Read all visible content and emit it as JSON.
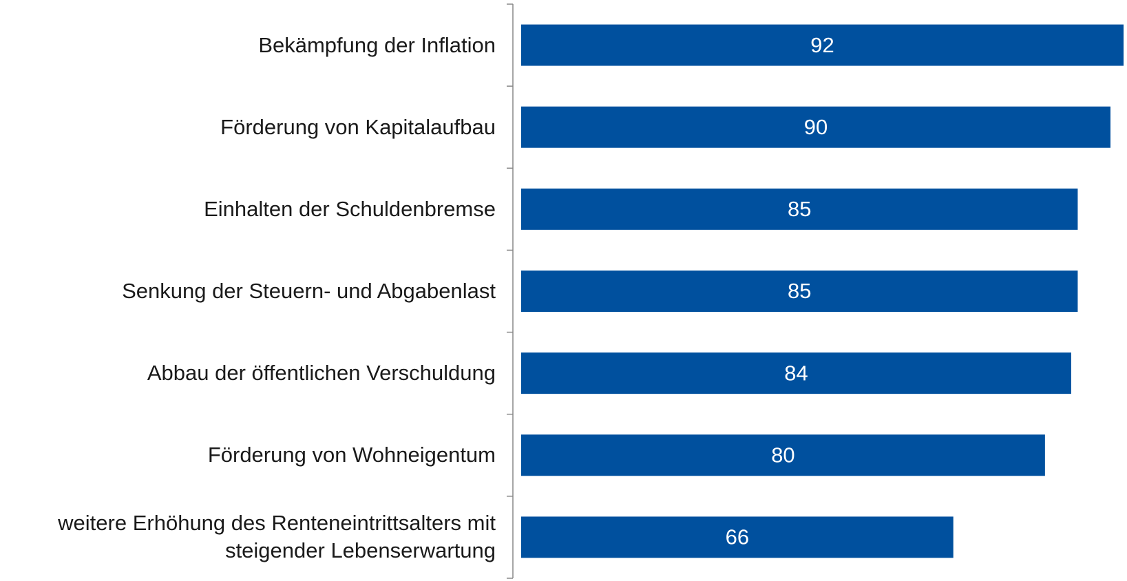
{
  "chart_data": {
    "type": "bar",
    "orientation": "horizontal",
    "categories": [
      "Bekämpfung der Inflation",
      "Förderung von Kapitalaufbau",
      "Einhalten der Schuldenbremse",
      "Senkung der Steuern- und Abgabenlast",
      "Abbau der öffentlichen Verschuldung",
      "Förderung von Wohneigentum",
      "weitere Erhöhung des Renteneintrittsalters mit\nsteigender Lebenserwartung"
    ],
    "values": [
      92,
      90,
      85,
      85,
      84,
      80,
      66
    ],
    "color": "#00509e"
  }
}
